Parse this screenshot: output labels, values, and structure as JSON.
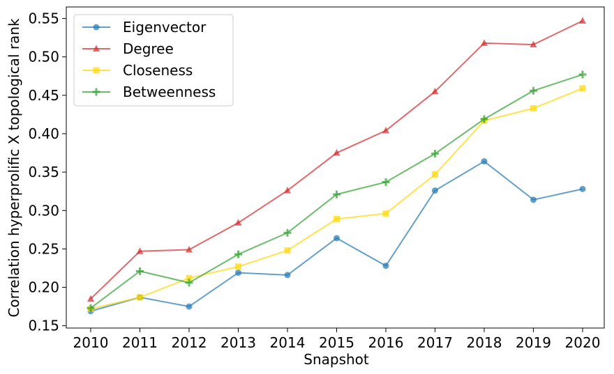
{
  "chart_data": {
    "type": "line",
    "title": "",
    "xlabel": "Snapshot",
    "ylabel": "Correlation hyperprolific X topological rank",
    "x": [
      "2010",
      "2011",
      "2012",
      "2013",
      "2014",
      "2015",
      "2016",
      "2017",
      "2018",
      "2019",
      "2020"
    ],
    "yticks": [
      "0.15",
      "0.20",
      "0.25",
      "0.30",
      "0.35",
      "0.40",
      "0.45",
      "0.50",
      "0.55"
    ],
    "ylim": [
      0.147,
      0.565
    ],
    "grid": false,
    "legend_position": "top-left",
    "series": [
      {
        "name": "Eigenvector",
        "color": "#1f77b4",
        "marker": "circle",
        "values": [
          0.169,
          0.187,
          0.175,
          0.219,
          0.216,
          0.264,
          0.228,
          0.326,
          0.364,
          0.314,
          0.328
        ]
      },
      {
        "name": "Degree",
        "color": "#d62728",
        "marker": "triangle",
        "values": [
          0.185,
          0.247,
          0.249,
          0.284,
          0.326,
          0.375,
          0.404,
          0.455,
          0.518,
          0.516,
          0.547
        ]
      },
      {
        "name": "Closeness",
        "color": "#ffd700",
        "marker": "square",
        "values": [
          0.172,
          0.187,
          0.212,
          0.227,
          0.248,
          0.289,
          0.296,
          0.347,
          0.417,
          0.433,
          0.459
        ]
      },
      {
        "name": "Betweenness",
        "color": "#2ca02c",
        "marker": "plus",
        "values": [
          0.173,
          0.221,
          0.206,
          0.243,
          0.271,
          0.321,
          0.337,
          0.374,
          0.419,
          0.456,
          0.477
        ]
      }
    ]
  }
}
